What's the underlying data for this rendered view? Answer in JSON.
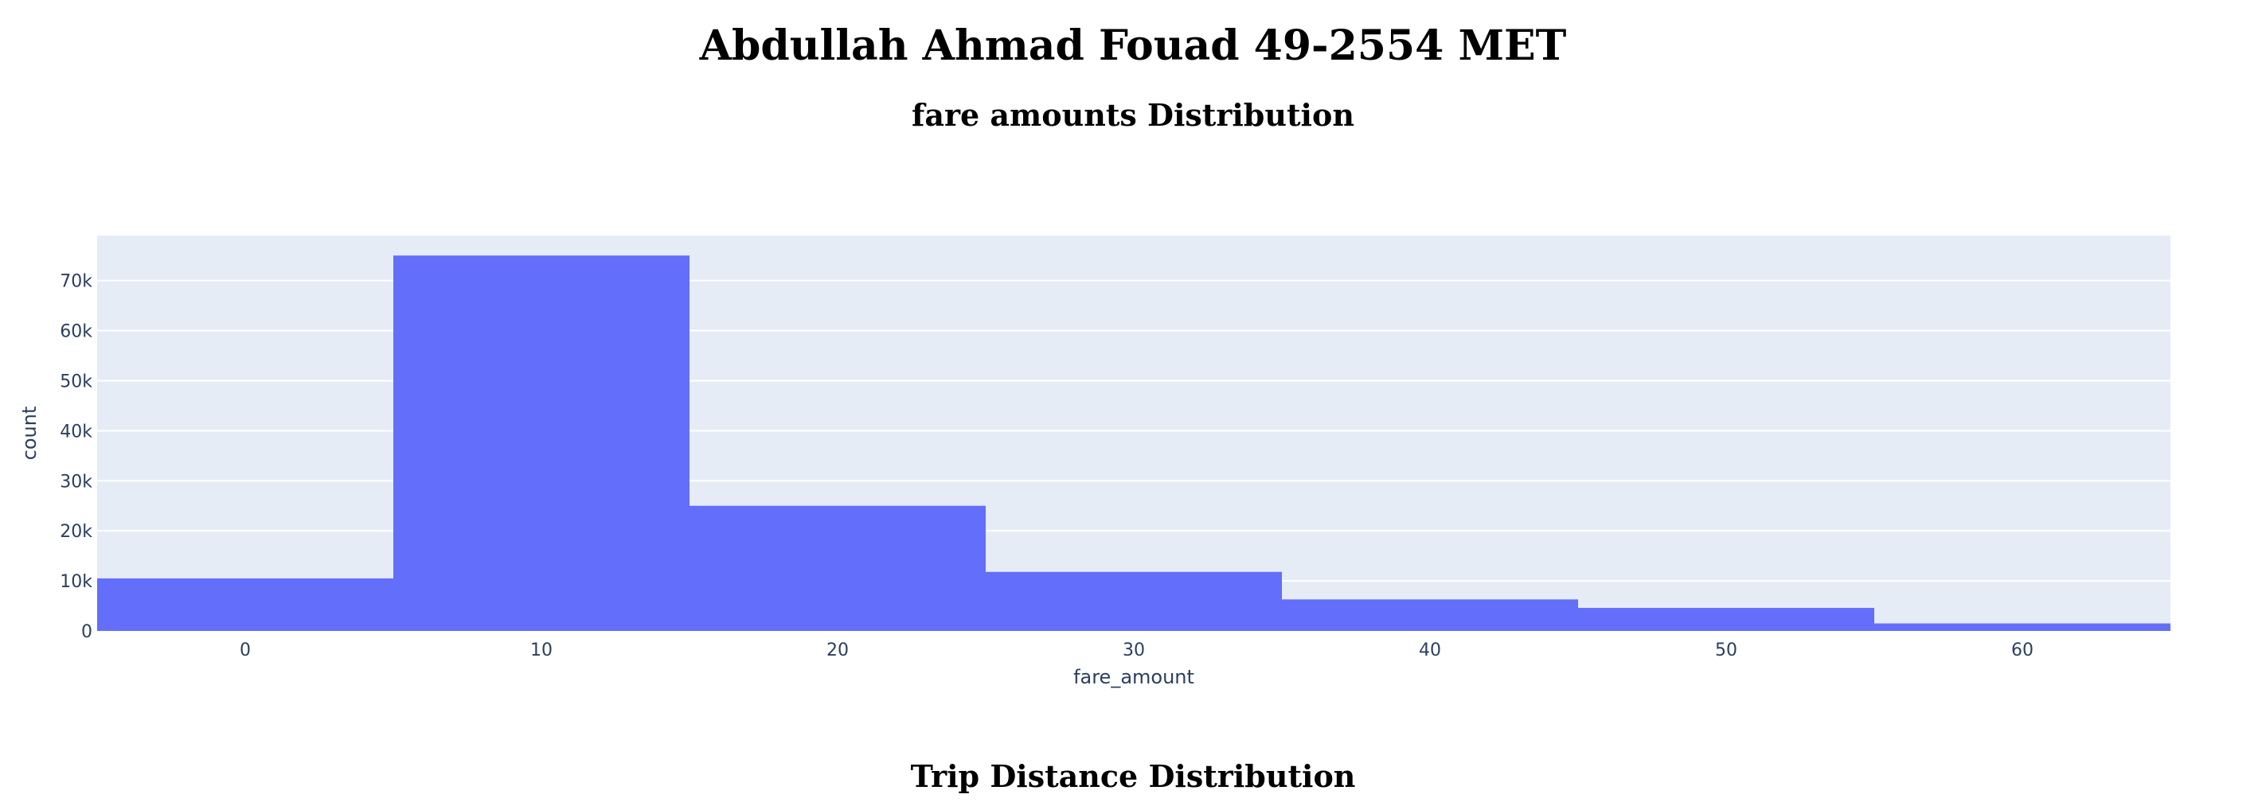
{
  "header": {
    "title": "Abdullah Ahmad Fouad 49-2554 MET"
  },
  "chart_data": {
    "type": "bar",
    "title": "fare amounts Distribution",
    "xlabel": "fare_amount",
    "ylabel": "count",
    "bins": [
      {
        "start": -5,
        "end": 5,
        "count": 10500
      },
      {
        "start": 5,
        "end": 15,
        "count": 75000
      },
      {
        "start": 15,
        "end": 25,
        "count": 25000
      },
      {
        "start": 25,
        "end": 35,
        "count": 11800
      },
      {
        "start": 35,
        "end": 45,
        "count": 6300
      },
      {
        "start": 45,
        "end": 55,
        "count": 4600
      },
      {
        "start": 55,
        "end": 65,
        "count": 1500
      }
    ],
    "xlim": [
      -5,
      65
    ],
    "ylim": [
      0,
      79000
    ],
    "x_ticks": [
      0,
      10,
      20,
      30,
      40,
      50,
      60
    ],
    "y_ticks": [
      0,
      10000,
      20000,
      30000,
      40000,
      50000,
      60000,
      70000
    ],
    "y_tick_labels": [
      "0",
      "10k",
      "20k",
      "30k",
      "40k",
      "50k",
      "60k",
      "70k"
    ],
    "grid": true,
    "colors": {
      "bar": "#636efa",
      "plot_bg": "#e5ecf6",
      "grid": "#ffffff"
    }
  },
  "next_section": {
    "title": "Trip Distance Distribution"
  }
}
